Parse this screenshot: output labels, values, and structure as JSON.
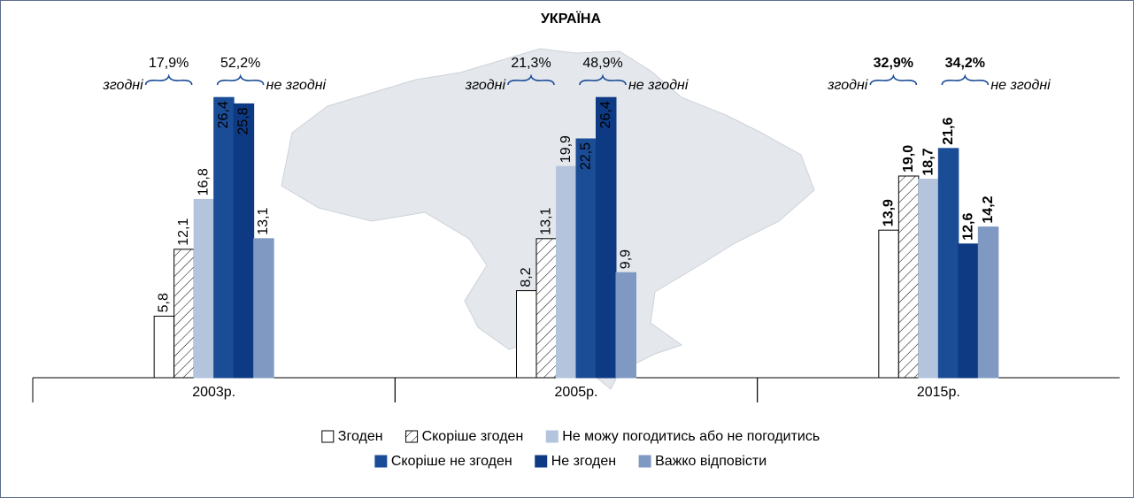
{
  "chart_data": {
    "type": "bar",
    "title": "УКРАЇНА",
    "categories": [
      "2003р.",
      "2005р.",
      "2015р."
    ],
    "series": [
      {
        "name": "Згоден",
        "color": "#ffffff",
        "values": [
          5.8,
          8.2,
          13.9
        ],
        "value_labels": [
          "5,8",
          "8,2",
          "13,9"
        ]
      },
      {
        "name": "Скоріше згоден",
        "color": "hatch",
        "values": [
          12.1,
          13.1,
          19.0
        ],
        "value_labels": [
          "12,1",
          "13,1",
          "19,0"
        ]
      },
      {
        "name": "Не можу погодитись або не погодитись",
        "color": "#b4c4dc",
        "values": [
          16.8,
          19.9,
          18.7
        ],
        "value_labels": [
          "16,8",
          "19,9",
          "18,7"
        ]
      },
      {
        "name": "Скоріше не згоден",
        "color": "#1b4c96",
        "values": [
          26.4,
          22.5,
          21.6
        ],
        "value_labels": [
          "26,4",
          "22,5",
          "21,6"
        ]
      },
      {
        "name": "Не згоден",
        "color": "#0e3a84",
        "values": [
          25.8,
          26.4,
          12.6
        ],
        "value_labels": [
          "25,8",
          "26,4",
          "12,6"
        ]
      },
      {
        "name": "Важко відповісти",
        "color": "#8099c2",
        "values": [
          13.1,
          9.9,
          14.2
        ],
        "value_labels": [
          "13,1",
          "9,9",
          "14,2"
        ]
      }
    ],
    "annotations": [
      {
        "agree": "17,9%",
        "disagree": "52,2%"
      },
      {
        "agree": "21,3%",
        "disagree": "48,9%"
      },
      {
        "agree": "32,9%",
        "disagree": "34,2%"
      }
    ],
    "agree_text": "згодні",
    "disagree_text": "не згодні"
  }
}
